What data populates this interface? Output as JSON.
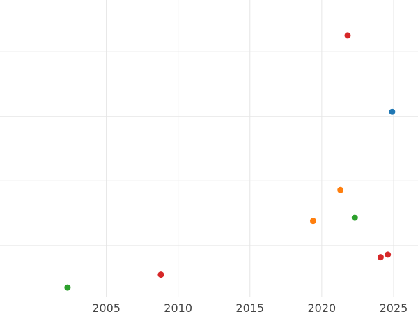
{
  "chart_data": {
    "type": "scatter",
    "title": "",
    "xlabel": "",
    "ylabel": "",
    "xlim": [
      1997.6,
      2026.7
    ],
    "ylim": [
      0.2,
      4.8
    ],
    "grid": true,
    "x_ticks": [
      2005,
      2010,
      2015,
      2020,
      2025
    ],
    "x_tick_labels": [
      "2005",
      "2010",
      "2015",
      "2020",
      "2025"
    ],
    "y_grid_values": [
      1,
      2,
      3,
      4
    ],
    "points": [
      {
        "x": 2002.3,
        "y": 0.35,
        "color": "#2ca02c"
      },
      {
        "x": 2008.8,
        "y": 0.55,
        "color": "#d62728"
      },
      {
        "x": 2019.4,
        "y": 1.38,
        "color": "#ff7f0e"
      },
      {
        "x": 2021.3,
        "y": 1.86,
        "color": "#ff7f0e"
      },
      {
        "x": 2021.8,
        "y": 4.25,
        "color": "#d62728"
      },
      {
        "x": 2022.3,
        "y": 1.43,
        "color": "#2ca02c"
      },
      {
        "x": 2024.1,
        "y": 0.82,
        "color": "#d62728"
      },
      {
        "x": 2024.6,
        "y": 0.86,
        "color": "#d62728"
      },
      {
        "x": 2024.9,
        "y": 3.07,
        "color": "#1f77b4"
      }
    ]
  }
}
